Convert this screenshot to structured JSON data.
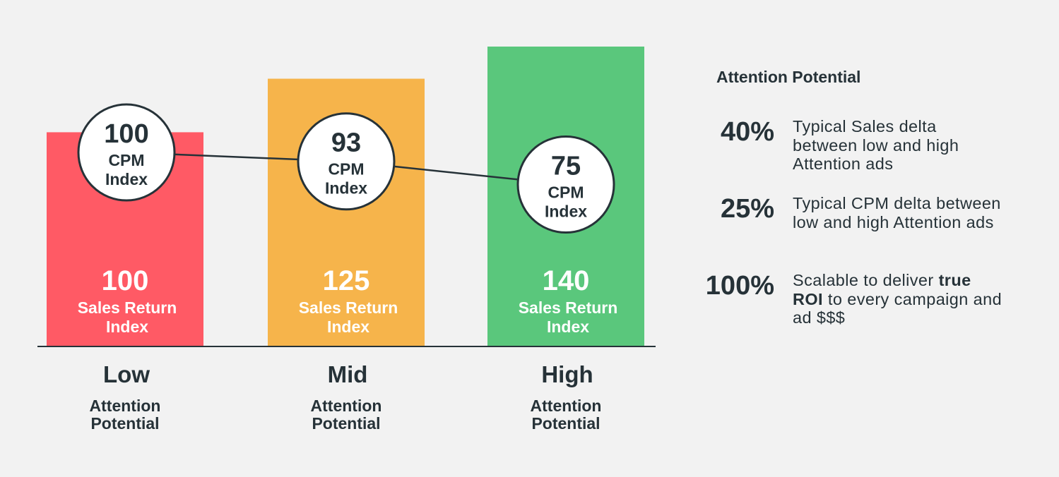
{
  "chart_data": {
    "type": "bar",
    "categories": [
      "Low",
      "Mid",
      "High"
    ],
    "category_sublabels": [
      "Attention\nPotential",
      "Attention\nPotential",
      "Attention\nPotential"
    ],
    "series": [
      {
        "name": "Sales Return Index",
        "values": [
          100,
          125,
          140
        ],
        "bar_label": "Sales Return\nIndex"
      },
      {
        "name": "CPM Index",
        "type": "line",
        "values": [
          100,
          93,
          75
        ],
        "marker_label": "CPM\nIndex"
      }
    ],
    "ylim": [
      0,
      140
    ],
    "grid": false,
    "colors": [
      "#ff5a65",
      "#f6b44b",
      "#5ac77c"
    ],
    "text_color": "#263238"
  },
  "sidebar": {
    "title": "Attention Potential",
    "stats": [
      {
        "value": "40%",
        "text": "Typical Sales delta between low and high Attention ads"
      },
      {
        "value": "25%",
        "text": "Typical CPM delta between low and high Attention ads"
      },
      {
        "value": "100%",
        "text_before": "Scalable to deliver ",
        "text_bold": "true ROI",
        "text_after": " to every campaign and ad $$$"
      }
    ]
  }
}
